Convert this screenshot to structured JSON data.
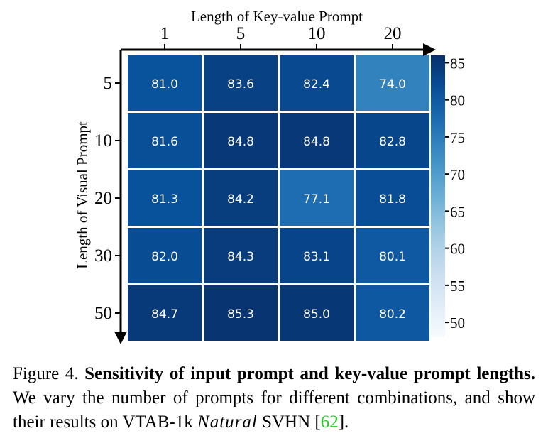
{
  "chart_data": {
    "type": "heatmap",
    "title": "",
    "xlabel": "Length of Key-value Prompt",
    "ylabel": "Length of Visual Prompt",
    "x_categories": [
      "1",
      "5",
      "10",
      "20"
    ],
    "y_categories": [
      "5",
      "10",
      "20",
      "30",
      "50"
    ],
    "values": [
      [
        81.0,
        83.6,
        82.4,
        74.0
      ],
      [
        81.6,
        84.8,
        84.8,
        82.8
      ],
      [
        81.3,
        84.2,
        77.1,
        81.8
      ],
      [
        82.0,
        84.3,
        83.1,
        80.1
      ],
      [
        84.7,
        85.3,
        85.0,
        80.2
      ]
    ],
    "cell_labels": [
      [
        "81.0",
        "83.6",
        "82.4",
        "74.0"
      ],
      [
        "81.6",
        "84.8",
        "84.8",
        "82.8"
      ],
      [
        "81.3",
        "84.2",
        "77.1",
        "81.8"
      ],
      [
        "82.0",
        "84.3",
        "83.1",
        "80.1"
      ],
      [
        "84.7",
        "85.3",
        "85.0",
        "80.2"
      ]
    ],
    "colormap": "Blues",
    "colorbar": {
      "range": [
        48,
        86
      ],
      "ticks": [
        "85",
        "80",
        "75",
        "70",
        "65",
        "60",
        "55",
        "50"
      ]
    },
    "colors": {
      "low": "#f7fbff",
      "high": "#08306b",
      "grid": "#ffffff",
      "axis": "#000000"
    }
  },
  "caption": {
    "prefix": "Figure 4. ",
    "bold": "Sensitivity of input prompt and key-value prompt lengths.",
    "text1": " We vary the number of prompts for different combinations, and show their results on VTAB-1k ",
    "italic": "Natural",
    "text2": " SVHN [",
    "ref": "62",
    "text3": "]."
  }
}
